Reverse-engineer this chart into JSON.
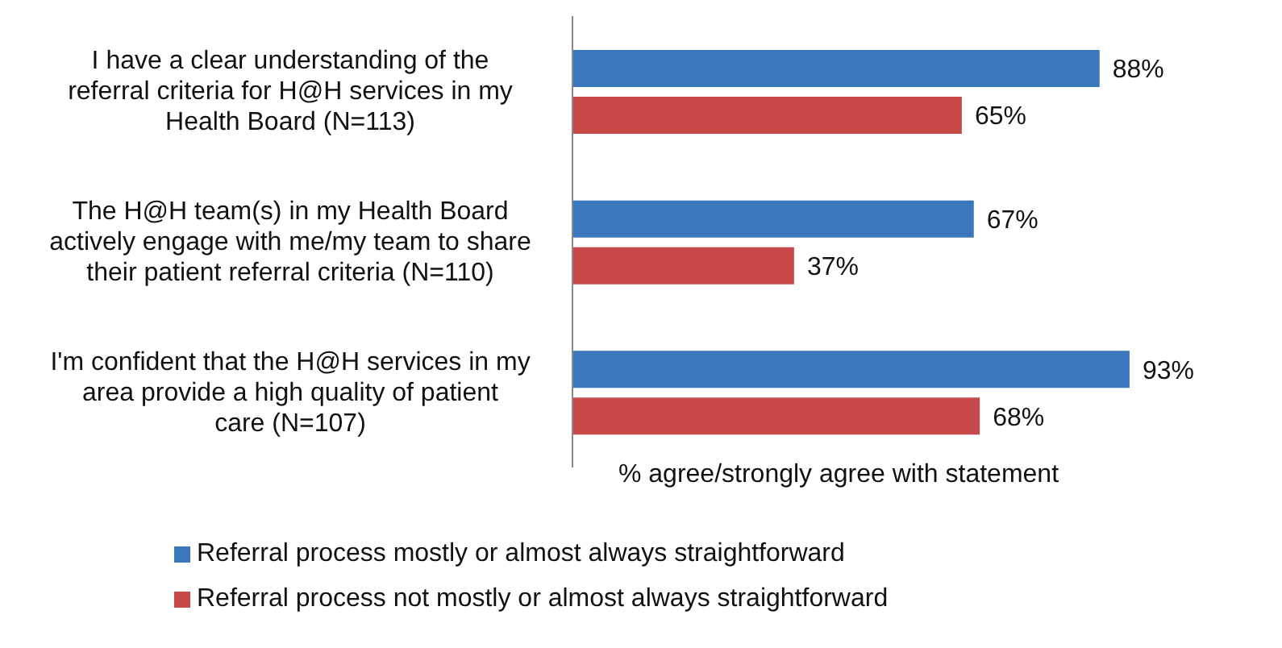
{
  "chart_data": {
    "type": "bar",
    "orientation": "horizontal",
    "xlabel": "% agree/strongly agree with statement",
    "categories": [
      "I have a clear understanding of the referral criteria for H@H services in my Health Board (N=113)",
      "The H@H team(s) in my Health Board actively engage with me/my team to share their patient referral criteria (N=110)",
      "I'm confident that the H@H services in my area provide a high quality of patient care (N=107)"
    ],
    "series": [
      {
        "name": "Referral process mostly or almost always straightforward",
        "color": "#3a77bd",
        "values": [
          88,
          67,
          93
        ],
        "value_labels": [
          "88%",
          "67%",
          "93%"
        ]
      },
      {
        "name": "Referral process not mostly or almost always straightforward",
        "color": "#c8494a",
        "values": [
          65,
          37,
          68
        ],
        "value_labels": [
          "65%",
          "37%",
          "68%"
        ]
      }
    ],
    "legend": "bottom",
    "grid": false
  }
}
